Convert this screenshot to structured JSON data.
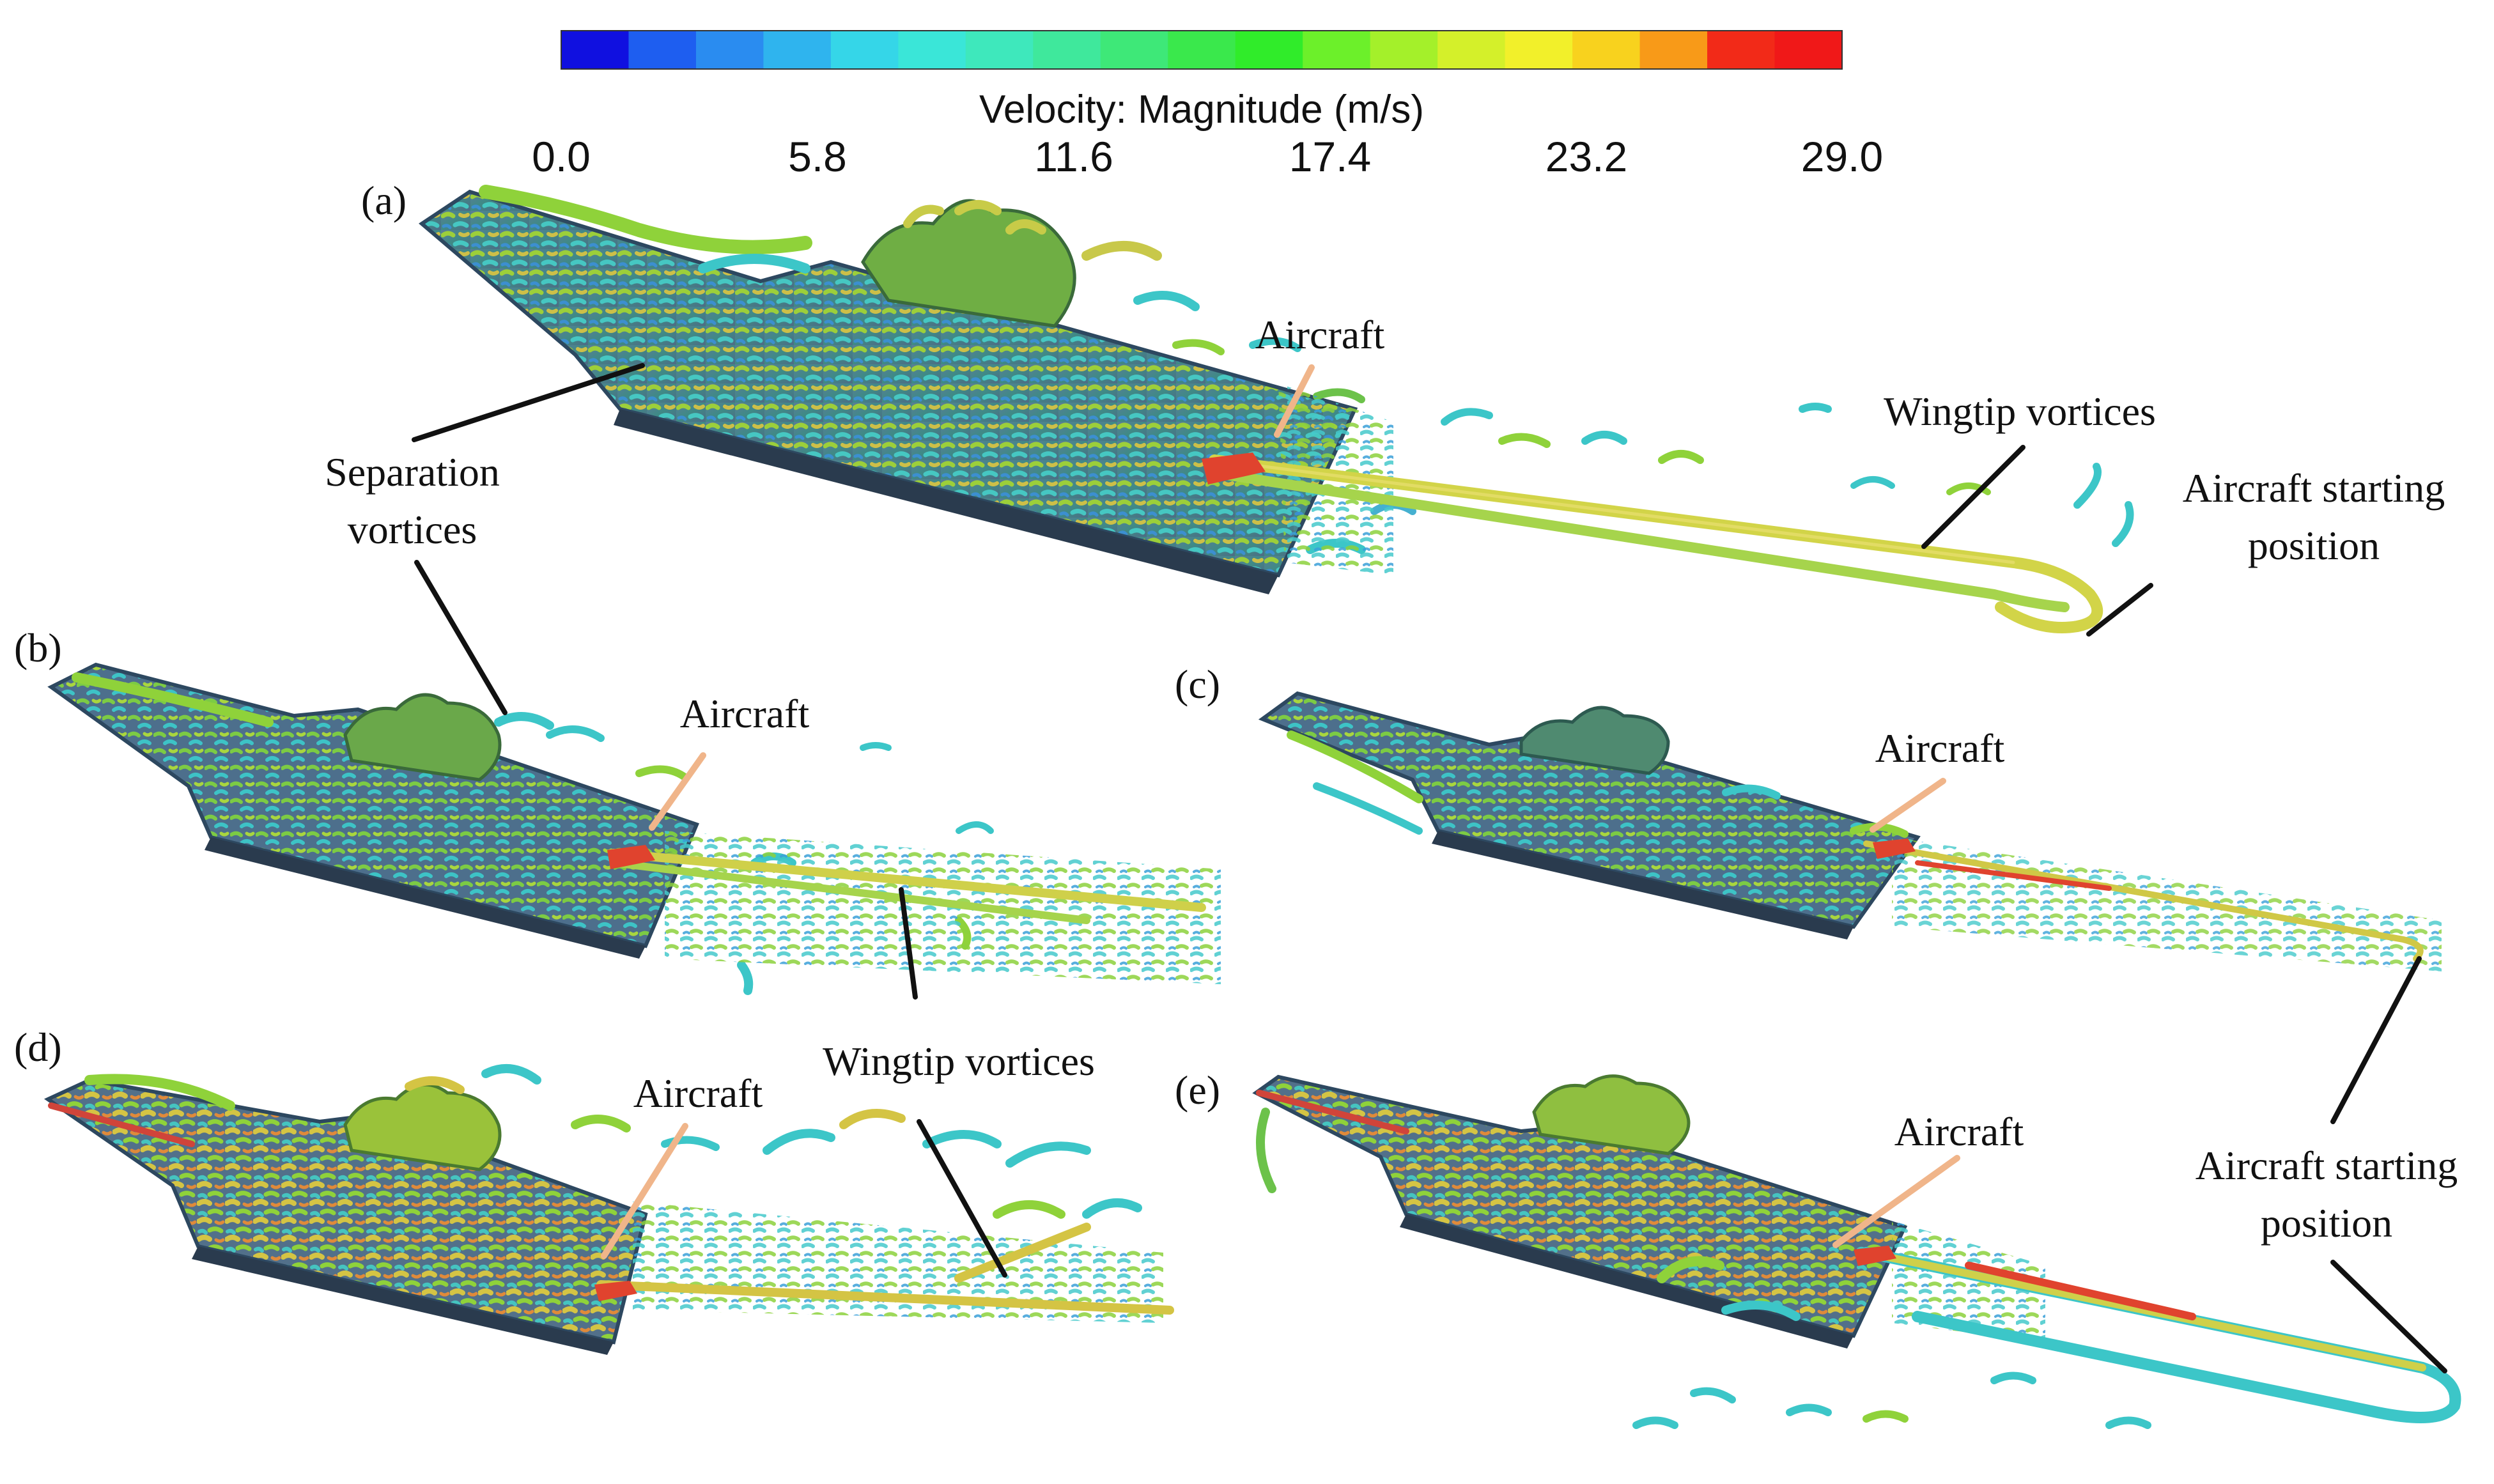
{
  "colorbar": {
    "title": "Velocity: Magnitude (m/s)",
    "ticks": [
      "0.0",
      "5.8",
      "11.6",
      "17.4",
      "23.2",
      "29.0"
    ],
    "colors": [
      "#1010e0",
      "#1e5ef0",
      "#2a8cf0",
      "#2fb4ee",
      "#35d6e8",
      "#3ae6d8",
      "#3ee8bc",
      "#3fe89c",
      "#3ee878",
      "#3ae84c",
      "#30ec2a",
      "#6cf02a",
      "#a4f02a",
      "#d4f02a",
      "#f2f02a",
      "#f8d21e",
      "#f89a18",
      "#f22a18",
      "#f01818"
    ]
  },
  "panels": [
    {
      "id": "a",
      "tag": "(a)"
    },
    {
      "id": "b",
      "tag": "(b)"
    },
    {
      "id": "c",
      "tag": "(c)"
    },
    {
      "id": "d",
      "tag": "(d)"
    },
    {
      "id": "e",
      "tag": "(e)"
    }
  ],
  "annotations": {
    "aircraft": "Aircraft",
    "wingtip_vortices": "Wingtip vortices",
    "separation_vortices_line1": "Separation",
    "separation_vortices_line2": "vortices",
    "starting_position_a_line1": "Aircraft starting",
    "starting_position_a_line2": "position",
    "starting_position_ce_line1": "Aircraft starting",
    "starting_position_ce_line2": "position"
  },
  "style": {
    "deck_color": "#4f6f8a",
    "vortex_color_low": "#3cc6c8",
    "vortex_color_mid": "#8fd23a",
    "vortex_color_high": "#d8c84a",
    "callout_aircraft_color": "#f0b58a"
  }
}
